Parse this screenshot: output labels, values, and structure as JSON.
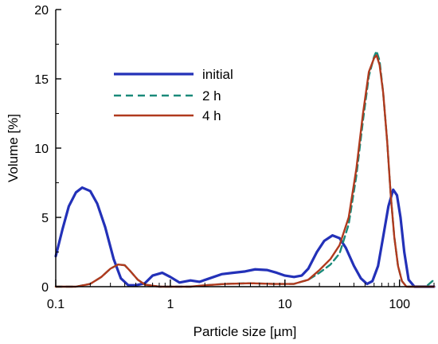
{
  "chart_data": {
    "type": "line",
    "xlabel": "Particle size [µm]",
    "ylabel": "Volume [%]",
    "x_scale": "log",
    "xlim": [
      0.1,
      200
    ],
    "ylim": [
      0,
      20
    ],
    "x_ticks": [
      {
        "value": 0.1,
        "label": "0.1"
      },
      {
        "value": 1,
        "label": "1"
      },
      {
        "value": 10,
        "label": "10"
      },
      {
        "value": 100,
        "label": "100"
      }
    ],
    "y_ticks": [
      {
        "value": 0,
        "label": "0"
      },
      {
        "value": 5,
        "label": "5"
      },
      {
        "value": 10,
        "label": "10"
      },
      {
        "value": 15,
        "label": "15"
      },
      {
        "value": 20,
        "label": "20"
      }
    ],
    "grid": false,
    "legend_position": "upper-left-inside",
    "series": [
      {
        "name": "initial",
        "color": "#2331b8",
        "style": "solid",
        "points": [
          [
            0.1,
            2.2
          ],
          [
            0.115,
            4.2
          ],
          [
            0.13,
            5.8
          ],
          [
            0.15,
            6.8
          ],
          [
            0.17,
            7.15
          ],
          [
            0.2,
            6.9
          ],
          [
            0.23,
            6.0
          ],
          [
            0.27,
            4.3
          ],
          [
            0.32,
            2.0
          ],
          [
            0.37,
            0.6
          ],
          [
            0.43,
            0.1
          ],
          [
            0.5,
            0.1
          ],
          [
            0.6,
            0.25
          ],
          [
            0.7,
            0.8
          ],
          [
            0.85,
            1.0
          ],
          [
            1.0,
            0.7
          ],
          [
            1.2,
            0.3
          ],
          [
            1.5,
            0.45
          ],
          [
            1.8,
            0.35
          ],
          [
            2.2,
            0.6
          ],
          [
            2.8,
            0.9
          ],
          [
            3.5,
            1.0
          ],
          [
            4.5,
            1.1
          ],
          [
            5.5,
            1.25
          ],
          [
            7.0,
            1.2
          ],
          [
            8.5,
            1.0
          ],
          [
            10,
            0.8
          ],
          [
            12,
            0.7
          ],
          [
            14,
            0.8
          ],
          [
            16,
            1.3
          ],
          [
            19,
            2.5
          ],
          [
            22,
            3.3
          ],
          [
            26,
            3.7
          ],
          [
            30,
            3.5
          ],
          [
            34,
            2.8
          ],
          [
            40,
            1.5
          ],
          [
            46,
            0.6
          ],
          [
            52,
            0.2
          ],
          [
            58,
            0.4
          ],
          [
            65,
            1.5
          ],
          [
            72,
            3.6
          ],
          [
            80,
            5.8
          ],
          [
            88,
            7.0
          ],
          [
            95,
            6.6
          ],
          [
            102,
            5.0
          ],
          [
            110,
            2.5
          ],
          [
            120,
            0.5
          ],
          [
            135,
            0.0
          ],
          [
            200,
            0.0
          ]
        ]
      },
      {
        "name": "2 h",
        "color": "#1a8a7a",
        "style": "dashed",
        "points": [
          [
            0.1,
            0.0
          ],
          [
            0.15,
            0.0
          ],
          [
            0.2,
            0.2
          ],
          [
            0.25,
            0.7
          ],
          [
            0.3,
            1.3
          ],
          [
            0.35,
            1.6
          ],
          [
            0.4,
            1.55
          ],
          [
            0.45,
            1.1
          ],
          [
            0.52,
            0.5
          ],
          [
            0.6,
            0.15
          ],
          [
            0.8,
            0.0
          ],
          [
            1.5,
            0.0
          ],
          [
            2.0,
            0.1
          ],
          [
            3.0,
            0.2
          ],
          [
            5.0,
            0.25
          ],
          [
            8.0,
            0.2
          ],
          [
            12,
            0.2
          ],
          [
            16,
            0.5
          ],
          [
            20,
            1.0
          ],
          [
            25,
            1.6
          ],
          [
            30,
            2.4
          ],
          [
            36,
            4.5
          ],
          [
            42,
            8.0
          ],
          [
            48,
            12.0
          ],
          [
            54,
            15.2
          ],
          [
            60,
            16.6
          ],
          [
            63,
            17.0
          ],
          [
            67,
            16.3
          ],
          [
            72,
            14.0
          ],
          [
            78,
            10.5
          ],
          [
            84,
            6.5
          ],
          [
            90,
            3.6
          ],
          [
            97,
            1.5
          ],
          [
            105,
            0.4
          ],
          [
            115,
            0.0
          ],
          [
            170,
            0.0
          ],
          [
            200,
            0.5
          ]
        ]
      },
      {
        "name": "4 h",
        "color": "#b03a1e",
        "style": "solid",
        "points": [
          [
            0.1,
            0.0
          ],
          [
            0.15,
            0.0
          ],
          [
            0.2,
            0.2
          ],
          [
            0.25,
            0.7
          ],
          [
            0.3,
            1.3
          ],
          [
            0.35,
            1.6
          ],
          [
            0.4,
            1.55
          ],
          [
            0.45,
            1.1
          ],
          [
            0.52,
            0.5
          ],
          [
            0.6,
            0.15
          ],
          [
            0.8,
            0.0
          ],
          [
            1.5,
            0.0
          ],
          [
            2.0,
            0.1
          ],
          [
            3.0,
            0.2
          ],
          [
            5.0,
            0.25
          ],
          [
            8.0,
            0.2
          ],
          [
            12,
            0.2
          ],
          [
            16,
            0.5
          ],
          [
            20,
            1.2
          ],
          [
            25,
            2.0
          ],
          [
            30,
            3.0
          ],
          [
            36,
            5.0
          ],
          [
            42,
            8.5
          ],
          [
            48,
            12.5
          ],
          [
            54,
            15.5
          ],
          [
            60,
            16.5
          ],
          [
            63,
            16.7
          ],
          [
            67,
            16.0
          ],
          [
            72,
            14.0
          ],
          [
            78,
            10.5
          ],
          [
            84,
            6.5
          ],
          [
            90,
            3.6
          ],
          [
            97,
            1.5
          ],
          [
            105,
            0.4
          ],
          [
            115,
            0.0
          ],
          [
            200,
            0.0
          ]
        ]
      }
    ]
  }
}
